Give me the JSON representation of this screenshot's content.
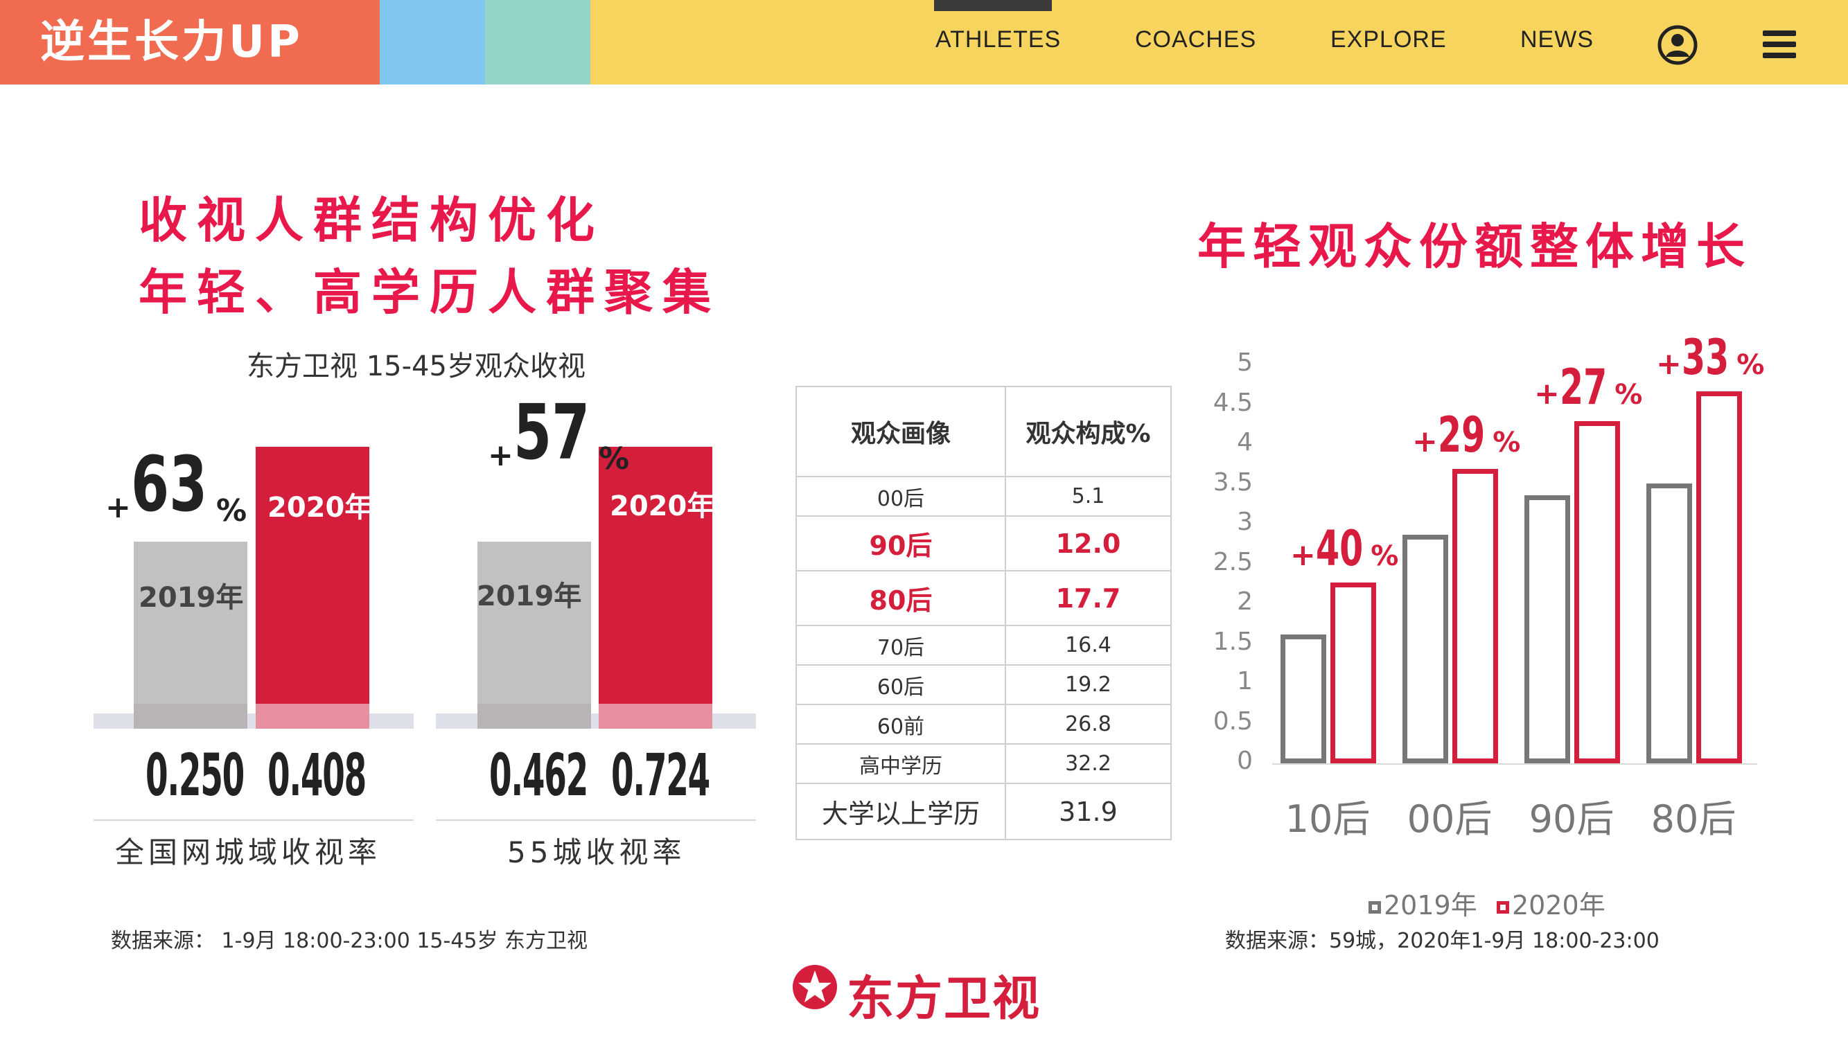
{
  "brand": "逆生长力UP",
  "nav": {
    "athletes": "ATHLETES",
    "coaches": "COACHES",
    "explore": "EXPLORE",
    "news": "NEWS"
  },
  "colors": {
    "header": "#f6d45e",
    "brand_block": "#f06b50",
    "accent_red": "#d51d3c",
    "headline_red": "#e8194a",
    "gray": "#c2c1c1"
  },
  "icons": {
    "user": "user-circle-icon",
    "menu": "hamburger-menu-icon",
    "logo": "dragon-tv-logo-icon"
  },
  "headlines": {
    "line1": "收视人群结构优化",
    "line2": "年轻、高学历人群聚集",
    "right": "年轻观众份额整体增长"
  },
  "left_chart_title": "东方卫视 15-45岁观众收视",
  "chart_data": [
    {
      "type": "bar",
      "categories": [
        "2019年",
        "2020年"
      ],
      "values": [
        0.25,
        0.408
      ],
      "growth": {
        "sign": "+",
        "value": "63",
        "unit": "%"
      },
      "value_labels": [
        "0.250",
        "0.408"
      ],
      "caption": "全国网城域收视率"
    },
    {
      "type": "bar",
      "categories": [
        "2019年",
        "2020年"
      ],
      "values": [
        0.462,
        0.724
      ],
      "growth": {
        "sign": "+",
        "value": "57",
        "unit": "%"
      },
      "value_labels": [
        "0.462",
        "0.724"
      ],
      "caption": "55城收视率"
    },
    {
      "type": "table",
      "headers": [
        "观众画像",
        "观众构成%"
      ],
      "rows": [
        {
          "label": "00后",
          "value": "5.1",
          "highlight": false
        },
        {
          "label": "90后",
          "value": "12.0",
          "highlight": true
        },
        {
          "label": "80后",
          "value": "17.7",
          "highlight": true
        },
        {
          "label": "70后",
          "value": "16.4",
          "highlight": false
        },
        {
          "label": "60后",
          "value": "19.2",
          "highlight": false
        },
        {
          "label": "60前",
          "value": "26.8",
          "highlight": false
        },
        {
          "label": "高中学历",
          "value": "32.2",
          "highlight": false
        },
        {
          "label": "大学以上学历",
          "value": "31.9",
          "highlight": false
        }
      ]
    },
    {
      "type": "bar",
      "categories": [
        "10后",
        "00后",
        "90后",
        "80后"
      ],
      "series": [
        {
          "name": "2019年",
          "values": [
            1.6,
            2.85,
            3.35,
            3.5
          ]
        },
        {
          "name": "2020年",
          "values": [
            2.25,
            3.68,
            4.28,
            4.65
          ]
        }
      ],
      "growth_labels": [
        {
          "sign": "+",
          "value": "40",
          "unit": "%"
        },
        {
          "sign": "+",
          "value": "29",
          "unit": "%"
        },
        {
          "sign": "+",
          "value": "27",
          "unit": "%"
        },
        {
          "sign": "+",
          "value": "33",
          "unit": "%"
        }
      ],
      "yticks": [
        "0",
        "0.5",
        "1",
        "1.5",
        "2",
        "2.5",
        "3",
        "3.5",
        "4",
        "4.5",
        "5"
      ],
      "ylim": [
        0,
        5
      ],
      "legend_position": "bottom"
    }
  ],
  "sources": {
    "left": "数据来源： 1-9月  18:00-23:00  15-45岁  东方卫视",
    "right": "数据来源：59城，2020年1-9月 18:00-23:00"
  },
  "logo_text": "东方卫视"
}
